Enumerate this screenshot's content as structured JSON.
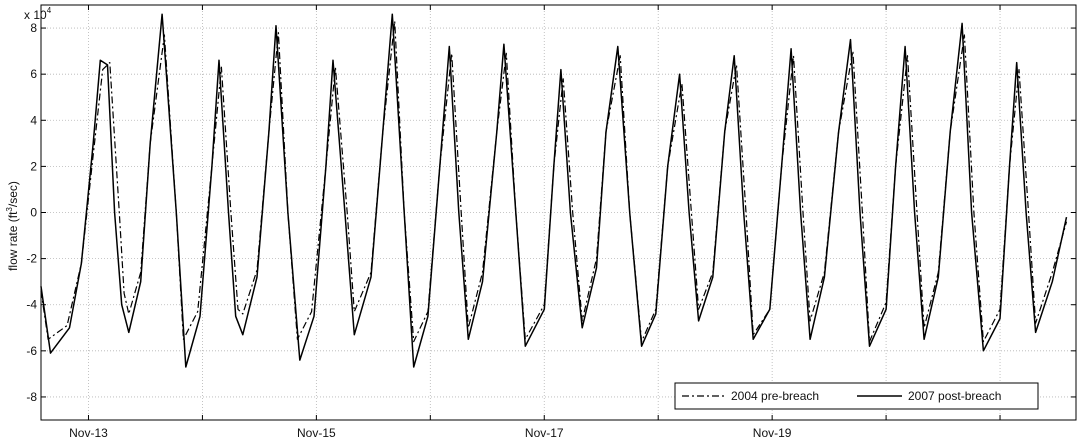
{
  "chart_data": {
    "type": "line",
    "title": "",
    "xlabel": "",
    "ylabel": "flow rate (ft3/sec)",
    "ylabel_parts": {
      "before": "flow rate (ft",
      "sup": "3",
      "after": "/sec)"
    },
    "y_multiplier": {
      "base": "x 10",
      "exponent": "4"
    },
    "xlim": [
      "2004-11-12T14:00",
      "2004-11-21T16:00"
    ],
    "ylim": [
      -9,
      9
    ],
    "y_ticks": [
      -8,
      -6,
      -4,
      -2,
      0,
      2,
      4,
      6,
      8
    ],
    "x_tick_labels": [
      "Nov-13",
      "Nov-15",
      "Nov-17",
      "Nov-19"
    ],
    "x_tick_dates": [
      "2004-11-13T00:00",
      "2004-11-15T00:00",
      "2004-11-17T00:00",
      "2004-11-19T00:00"
    ],
    "x_grid_dates": [
      "2004-11-13T00:00",
      "2004-11-14T00:00",
      "2004-11-15T00:00",
      "2004-11-16T00:00",
      "2004-11-17T00:00",
      "2004-11-18T00:00",
      "2004-11-19T00:00",
      "2004-11-20T00:00",
      "2004-11-21T00:00"
    ],
    "grid": true,
    "legend_position": "bottom-right",
    "series": [
      {
        "name": "2004 pre-breach",
        "style": "dash-dot",
        "color": "#000000",
        "points": [
          [
            "2004-11-12T14:00",
            -3.4
          ],
          [
            "2004-11-12T15:30",
            -5.5
          ],
          [
            "2004-11-12T19:30",
            -4.9
          ],
          [
            "2004-11-12T22:30",
            -2.2
          ],
          [
            "2004-11-13T01:00",
            2.5
          ],
          [
            "2004-11-13T03:00",
            6.2
          ],
          [
            "2004-11-13T04:30",
            6.5
          ],
          [
            "2004-11-13T06:30",
            0.0
          ],
          [
            "2004-11-13T07:30",
            -3.5
          ],
          [
            "2004-11-13T08:30",
            -4.4
          ],
          [
            "2004-11-13T11:00",
            -2.6
          ],
          [
            "2004-11-13T13:00",
            3.0
          ],
          [
            "2004-11-13T16:00",
            7.7
          ],
          [
            "2004-11-13T18:30",
            0.0
          ],
          [
            "2004-11-13T20:00",
            -5.5
          ],
          [
            "2004-11-13T23:00",
            -4.3
          ],
          [
            "2004-11-14T02:00",
            2.0
          ],
          [
            "2004-11-14T04:00",
            6.3
          ],
          [
            "2004-11-14T06:00",
            0.0
          ],
          [
            "2004-11-14T07:30",
            -4.2
          ],
          [
            "2004-11-14T08:30",
            -4.4
          ],
          [
            "2004-11-14T11:30",
            -2.5
          ],
          [
            "2004-11-14T14:00",
            3.5
          ],
          [
            "2004-11-14T16:00",
            7.8
          ],
          [
            "2004-11-14T18:00",
            0.0
          ],
          [
            "2004-11-14T20:00",
            -5.5
          ],
          [
            "2004-11-14T23:00",
            -4.3
          ],
          [
            "2004-11-15T02:00",
            2.0
          ],
          [
            "2004-11-15T04:00",
            6.3
          ],
          [
            "2004-11-15T06:30",
            0.0
          ],
          [
            "2004-11-15T08:00",
            -4.3
          ],
          [
            "2004-11-15T11:30",
            -2.6
          ],
          [
            "2004-11-15T14:00",
            3.5
          ],
          [
            "2004-11-15T16:30",
            8.3
          ],
          [
            "2004-11-15T18:30",
            0.0
          ],
          [
            "2004-11-15T20:30",
            -5.6
          ],
          [
            "2004-11-15T23:30",
            -4.3
          ],
          [
            "2004-11-16T02:00",
            2.0
          ],
          [
            "2004-11-16T04:30",
            6.9
          ],
          [
            "2004-11-16T06:30",
            0.0
          ],
          [
            "2004-11-16T08:00",
            -5.0
          ],
          [
            "2004-11-16T11:00",
            -2.6
          ],
          [
            "2004-11-16T14:00",
            3.5
          ],
          [
            "2004-11-16T16:00",
            6.9
          ],
          [
            "2004-11-16T18:00",
            0.0
          ],
          [
            "2004-11-16T20:00",
            -5.5
          ],
          [
            "2004-11-17T00:00",
            -4.0
          ],
          [
            "2004-11-17T02:00",
            2.0
          ],
          [
            "2004-11-17T04:00",
            5.8
          ],
          [
            "2004-11-17T06:00",
            0.0
          ],
          [
            "2004-11-17T08:00",
            -4.7
          ],
          [
            "2004-11-17T11:00",
            -2.0
          ],
          [
            "2004-11-17T13:00",
            3.5
          ],
          [
            "2004-11-17T16:00",
            6.8
          ],
          [
            "2004-11-17T18:00",
            0.0
          ],
          [
            "2004-11-17T20:30",
            -5.6
          ],
          [
            "2004-11-17T23:30",
            -4.2
          ],
          [
            "2004-11-18T02:00",
            2.0
          ],
          [
            "2004-11-18T05:00",
            5.6
          ],
          [
            "2004-11-18T07:00",
            0.0
          ],
          [
            "2004-11-18T08:30",
            -4.2
          ],
          [
            "2004-11-18T11:30",
            -2.6
          ],
          [
            "2004-11-18T14:00",
            3.5
          ],
          [
            "2004-11-18T16:30",
            6.4
          ],
          [
            "2004-11-18T18:30",
            0.0
          ],
          [
            "2004-11-18T20:00",
            -5.3
          ],
          [
            "2004-11-18T23:30",
            -4.2
          ],
          [
            "2004-11-19T02:00",
            2.0
          ],
          [
            "2004-11-19T04:30",
            6.8
          ],
          [
            "2004-11-19T06:30",
            0.0
          ],
          [
            "2004-11-19T08:00",
            -4.7
          ],
          [
            "2004-11-19T11:00",
            -2.6
          ],
          [
            "2004-11-19T14:00",
            3.5
          ],
          [
            "2004-11-19T17:00",
            7.0
          ],
          [
            "2004-11-19T19:00",
            0.0
          ],
          [
            "2004-11-19T20:30",
            -5.6
          ],
          [
            "2004-11-20T00:00",
            -3.9
          ],
          [
            "2004-11-20T02:00",
            2.0
          ],
          [
            "2004-11-20T04:30",
            6.8
          ],
          [
            "2004-11-20T06:30",
            0.0
          ],
          [
            "2004-11-20T08:00",
            -5.0
          ],
          [
            "2004-11-20T11:00",
            -2.6
          ],
          [
            "2004-11-20T13:30",
            3.5
          ],
          [
            "2004-11-20T16:30",
            7.7
          ],
          [
            "2004-11-20T18:30",
            0.0
          ],
          [
            "2004-11-20T20:30",
            -5.6
          ],
          [
            "2004-11-21T00:00",
            -4.2
          ],
          [
            "2004-11-21T02:00",
            2.0
          ],
          [
            "2004-11-21T04:00",
            6.2
          ],
          [
            "2004-11-21T06:00",
            0.0
          ],
          [
            "2004-11-21T07:30",
            -4.8
          ],
          [
            "2004-11-21T11:00",
            -2.6
          ],
          [
            "2004-11-21T14:00",
            -0.4
          ]
        ]
      },
      {
        "name": "2007 post-breach",
        "style": "solid",
        "color": "#000000",
        "points": [
          [
            "2004-11-12T14:00",
            -3.2
          ],
          [
            "2004-11-12T16:00",
            -6.1
          ],
          [
            "2004-11-12T20:00",
            -5.0
          ],
          [
            "2004-11-12T22:30",
            -2.2
          ],
          [
            "2004-11-13T01:00",
            3.0
          ],
          [
            "2004-11-13T02:30",
            6.6
          ],
          [
            "2004-11-13T04:00",
            6.4
          ],
          [
            "2004-11-13T05:30",
            0.0
          ],
          [
            "2004-11-13T07:00",
            -4.0
          ],
          [
            "2004-11-13T08:30",
            -5.2
          ],
          [
            "2004-11-13T11:00",
            -3.0
          ],
          [
            "2004-11-13T13:00",
            3.0
          ],
          [
            "2004-11-13T15:30",
            8.6
          ],
          [
            "2004-11-13T18:30",
            0.0
          ],
          [
            "2004-11-13T20:30",
            -6.7
          ],
          [
            "2004-11-13T23:30",
            -4.5
          ],
          [
            "2004-11-14T02:00",
            2.0
          ],
          [
            "2004-11-14T03:30",
            6.6
          ],
          [
            "2004-11-14T05:30",
            0.0
          ],
          [
            "2004-11-14T07:00",
            -4.5
          ],
          [
            "2004-11-14T08:30",
            -5.3
          ],
          [
            "2004-11-14T11:30",
            -2.8
          ],
          [
            "2004-11-14T14:00",
            3.5
          ],
          [
            "2004-11-14T15:30",
            8.1
          ],
          [
            "2004-11-14T18:00",
            0.0
          ],
          [
            "2004-11-14T20:30",
            -6.4
          ],
          [
            "2004-11-14T23:30",
            -4.5
          ],
          [
            "2004-11-15T02:00",
            2.0
          ],
          [
            "2004-11-15T03:30",
            6.6
          ],
          [
            "2004-11-15T06:00",
            0.0
          ],
          [
            "2004-11-15T08:00",
            -5.3
          ],
          [
            "2004-11-15T11:30",
            -2.8
          ],
          [
            "2004-11-15T14:00",
            3.5
          ],
          [
            "2004-11-15T16:00",
            8.6
          ],
          [
            "2004-11-15T18:30",
            0.0
          ],
          [
            "2004-11-15T20:30",
            -6.7
          ],
          [
            "2004-11-15T23:30",
            -4.5
          ],
          [
            "2004-11-16T02:00",
            2.0
          ],
          [
            "2004-11-16T04:00",
            7.2
          ],
          [
            "2004-11-16T06:00",
            0.0
          ],
          [
            "2004-11-16T08:00",
            -5.5
          ],
          [
            "2004-11-16T11:00",
            -3.0
          ],
          [
            "2004-11-16T14:00",
            3.5
          ],
          [
            "2004-11-16T15:30",
            7.3
          ],
          [
            "2004-11-16T18:00",
            0.0
          ],
          [
            "2004-11-16T20:00",
            -5.8
          ],
          [
            "2004-11-17T00:00",
            -4.2
          ],
          [
            "2004-11-17T02:00",
            2.0
          ],
          [
            "2004-11-17T03:30",
            6.2
          ],
          [
            "2004-11-17T05:30",
            0.0
          ],
          [
            "2004-11-17T08:00",
            -5.0
          ],
          [
            "2004-11-17T11:00",
            -2.4
          ],
          [
            "2004-11-17T13:00",
            3.5
          ],
          [
            "2004-11-17T15:30",
            7.2
          ],
          [
            "2004-11-17T18:00",
            0.0
          ],
          [
            "2004-11-17T20:30",
            -5.8
          ],
          [
            "2004-11-17T23:30",
            -4.4
          ],
          [
            "2004-11-18T02:00",
            2.0
          ],
          [
            "2004-11-18T04:30",
            6.0
          ],
          [
            "2004-11-18T06:30",
            0.0
          ],
          [
            "2004-11-18T08:30",
            -4.7
          ],
          [
            "2004-11-18T11:30",
            -2.8
          ],
          [
            "2004-11-18T14:00",
            3.5
          ],
          [
            "2004-11-18T16:00",
            6.8
          ],
          [
            "2004-11-18T18:00",
            0.0
          ],
          [
            "2004-11-18T20:00",
            -5.5
          ],
          [
            "2004-11-18T23:30",
            -4.2
          ],
          [
            "2004-11-19T02:00",
            2.0
          ],
          [
            "2004-11-19T04:00",
            7.1
          ],
          [
            "2004-11-19T06:00",
            0.0
          ],
          [
            "2004-11-19T08:00",
            -5.5
          ],
          [
            "2004-11-19T11:00",
            -2.8
          ],
          [
            "2004-11-19T14:00",
            3.5
          ],
          [
            "2004-11-19T16:30",
            7.5
          ],
          [
            "2004-11-19T18:30",
            0.0
          ],
          [
            "2004-11-19T20:30",
            -5.8
          ],
          [
            "2004-11-20T00:00",
            -4.2
          ],
          [
            "2004-11-20T02:00",
            2.0
          ],
          [
            "2004-11-20T04:00",
            7.2
          ],
          [
            "2004-11-20T06:00",
            0.0
          ],
          [
            "2004-11-20T08:00",
            -5.5
          ],
          [
            "2004-11-20T11:00",
            -2.8
          ],
          [
            "2004-11-20T13:30",
            3.5
          ],
          [
            "2004-11-20T16:00",
            8.2
          ],
          [
            "2004-11-20T18:00",
            0.0
          ],
          [
            "2004-11-20T20:30",
            -6.0
          ],
          [
            "2004-11-21T00:00",
            -4.6
          ],
          [
            "2004-11-21T02:00",
            2.0
          ],
          [
            "2004-11-21T03:30",
            6.5
          ],
          [
            "2004-11-21T05:30",
            0.0
          ],
          [
            "2004-11-21T07:30",
            -5.2
          ],
          [
            "2004-11-21T11:00",
            -3.0
          ],
          [
            "2004-11-21T14:00",
            -0.2
          ]
        ]
      }
    ]
  }
}
